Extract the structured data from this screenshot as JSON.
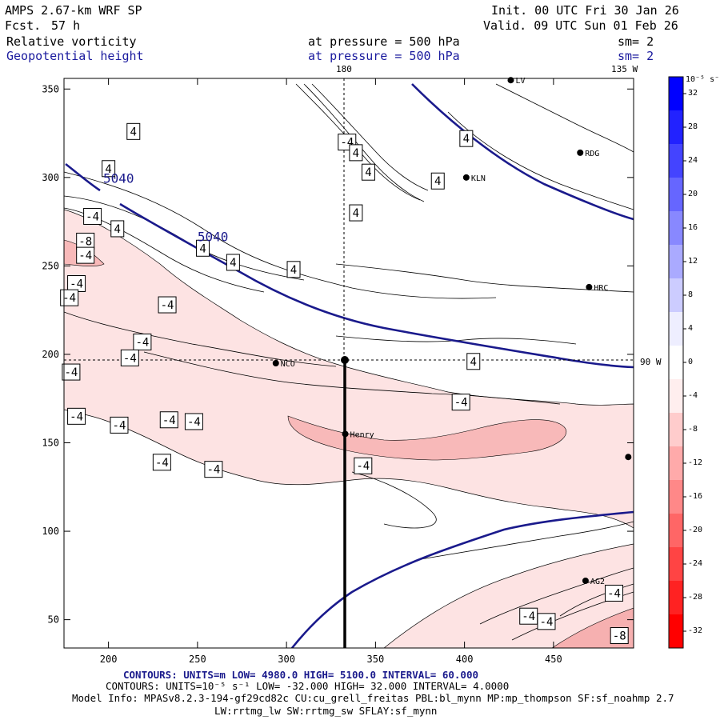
{
  "header": {
    "model": "AMPS 2.67-km WRF SP",
    "fcst_label": "Fcst.",
    "fcst_value": "57 h",
    "init": "Init. 00 UTC Fri 30 Jan 26",
    "valid": "Valid. 09 UTC Sun 01 Feb 26",
    "var1": "Relative vorticity",
    "var2": "Geopotential height",
    "level1": "at pressure =  500 hPa",
    "level2": "at pressure =  500 hPa",
    "sm1": "sm= 2",
    "sm2": "sm= 2"
  },
  "map_labels": {
    "lon_top": "180",
    "lon_top_right": "135 W",
    "lon_right": "90 W"
  },
  "colorbar": {
    "unit": "10⁻⁵ s⁻¹",
    "ticks": [
      "32",
      "28",
      "24",
      "20",
      "16",
      "12",
      "8",
      "4",
      "0",
      "-4",
      "-8",
      "-12",
      "-16",
      "-20",
      "-24",
      "-28",
      "-32"
    ],
    "colors": [
      "#0000ff",
      "#2222ff",
      "#4444ff",
      "#6666ff",
      "#8888ff",
      "#aaaaff",
      "#ccccff",
      "#eeeeff",
      "#ffffff",
      "#ffeeee",
      "#ffcccc",
      "#ffaaaa",
      "#ff8888",
      "#ff6666",
      "#ff4444",
      "#ff2222",
      "#ff0000"
    ]
  },
  "stations": [
    {
      "name": "LV",
      "x": 426,
      "y": 355
    },
    {
      "name": "RDG",
      "x": 465,
      "y": 314
    },
    {
      "name": "KLN",
      "x": 401,
      "y": 300
    },
    {
      "name": "HRC",
      "x": 470,
      "y": 238
    },
    {
      "name": "NCO",
      "x": 294,
      "y": 195
    },
    {
      "name": "Henry",
      "x": 333,
      "y": 155
    },
    {
      "name": "",
      "x": 492,
      "y": 142
    },
    {
      "name": "AG2",
      "x": 468,
      "y": 72
    }
  ],
  "footer": {
    "line1": "CONTOURS:  UNITS=m  LOW=  4980.0      HIGH=  5100.0      INTERVAL=   60.000",
    "line2": "CONTOURS:  UNITS=10⁻⁵ s⁻¹  LOW= -32.000      HIGH=  32.000      INTERVAL=   4.0000",
    "line3": "Model Info: MPASv8.2.3-194-gf29cd82c CU:cu_grell_freitas PBL:bl_mynn MP:mp_thompson SF:sf_noahmp 2.7",
    "line4": "LW:rrtmg_lw SW:rrtmg_sw SFLAY:sf_mynn"
  },
  "chart_data": {
    "type": "contour",
    "title": "Relative vorticity and Geopotential height at 500 hPa",
    "xlim": [
      175,
      495
    ],
    "ylim": [
      34,
      356
    ],
    "x_ticks": [
      200,
      250,
      300,
      350,
      400,
      450
    ],
    "y_ticks": [
      50,
      100,
      150,
      200,
      250,
      300,
      350
    ],
    "crosshair": {
      "x": 334,
      "y": 195
    },
    "transect": {
      "x": 334,
      "y_from": 34,
      "y_to": 195
    },
    "geopotential_contours": [
      {
        "value": "5040",
        "label_points": [
          {
            "x": 197,
            "y": 297
          },
          {
            "x": 250,
            "y": 264
          }
        ]
      },
      {
        "value": "5100",
        "label_points": []
      },
      {
        "value": "4980",
        "label_points": []
      }
    ],
    "vorticity_labels": [
      {
        "text": "4",
        "x": 214,
        "y": 326
      },
      {
        "text": "4",
        "x": 200,
        "y": 305
      },
      {
        "text": "4",
        "x": 205,
        "y": 271
      },
      {
        "text": "4",
        "x": 253,
        "y": 260
      },
      {
        "text": "4",
        "x": 270,
        "y": 252
      },
      {
        "text": "4",
        "x": 304,
        "y": 248
      },
      {
        "text": "-4",
        "x": 334,
        "y": 320
      },
      {
        "text": "4",
        "x": 339,
        "y": 314
      },
      {
        "text": "4",
        "x": 346,
        "y": 303
      },
      {
        "text": "4",
        "x": 339,
        "y": 280
      },
      {
        "text": "4",
        "x": 385,
        "y": 298
      },
      {
        "text": "4",
        "x": 401,
        "y": 322
      },
      {
        "text": "4",
        "x": 405,
        "y": 196
      },
      {
        "text": "-4",
        "x": 191,
        "y": 278
      },
      {
        "text": "-8",
        "x": 187,
        "y": 264
      },
      {
        "text": "-4",
        "x": 187,
        "y": 256
      },
      {
        "text": "-4",
        "x": 182,
        "y": 240
      },
      {
        "text": "-4",
        "x": 178,
        "y": 232
      },
      {
        "text": "-4",
        "x": 233,
        "y": 228
      },
      {
        "text": "-4",
        "x": 219,
        "y": 207
      },
      {
        "text": "-4",
        "x": 212,
        "y": 198
      },
      {
        "text": "-4",
        "x": 179,
        "y": 190
      },
      {
        "text": "-4",
        "x": 182,
        "y": 165
      },
      {
        "text": "-4",
        "x": 206,
        "y": 160
      },
      {
        "text": "-4",
        "x": 234,
        "y": 163
      },
      {
        "text": "-4",
        "x": 248,
        "y": 162
      },
      {
        "text": "-4",
        "x": 230,
        "y": 139
      },
      {
        "text": "-4",
        "x": 259,
        "y": 135
      },
      {
        "text": "-4",
        "x": 343,
        "y": 137
      },
      {
        "text": "-4",
        "x": 398,
        "y": 173
      },
      {
        "text": "-4",
        "x": 436,
        "y": 52
      },
      {
        "text": "-4",
        "x": 446,
        "y": 49
      },
      {
        "text": "-4",
        "x": 484,
        "y": 65
      },
      {
        "text": "-8",
        "x": 487,
        "y": 41
      }
    ]
  }
}
